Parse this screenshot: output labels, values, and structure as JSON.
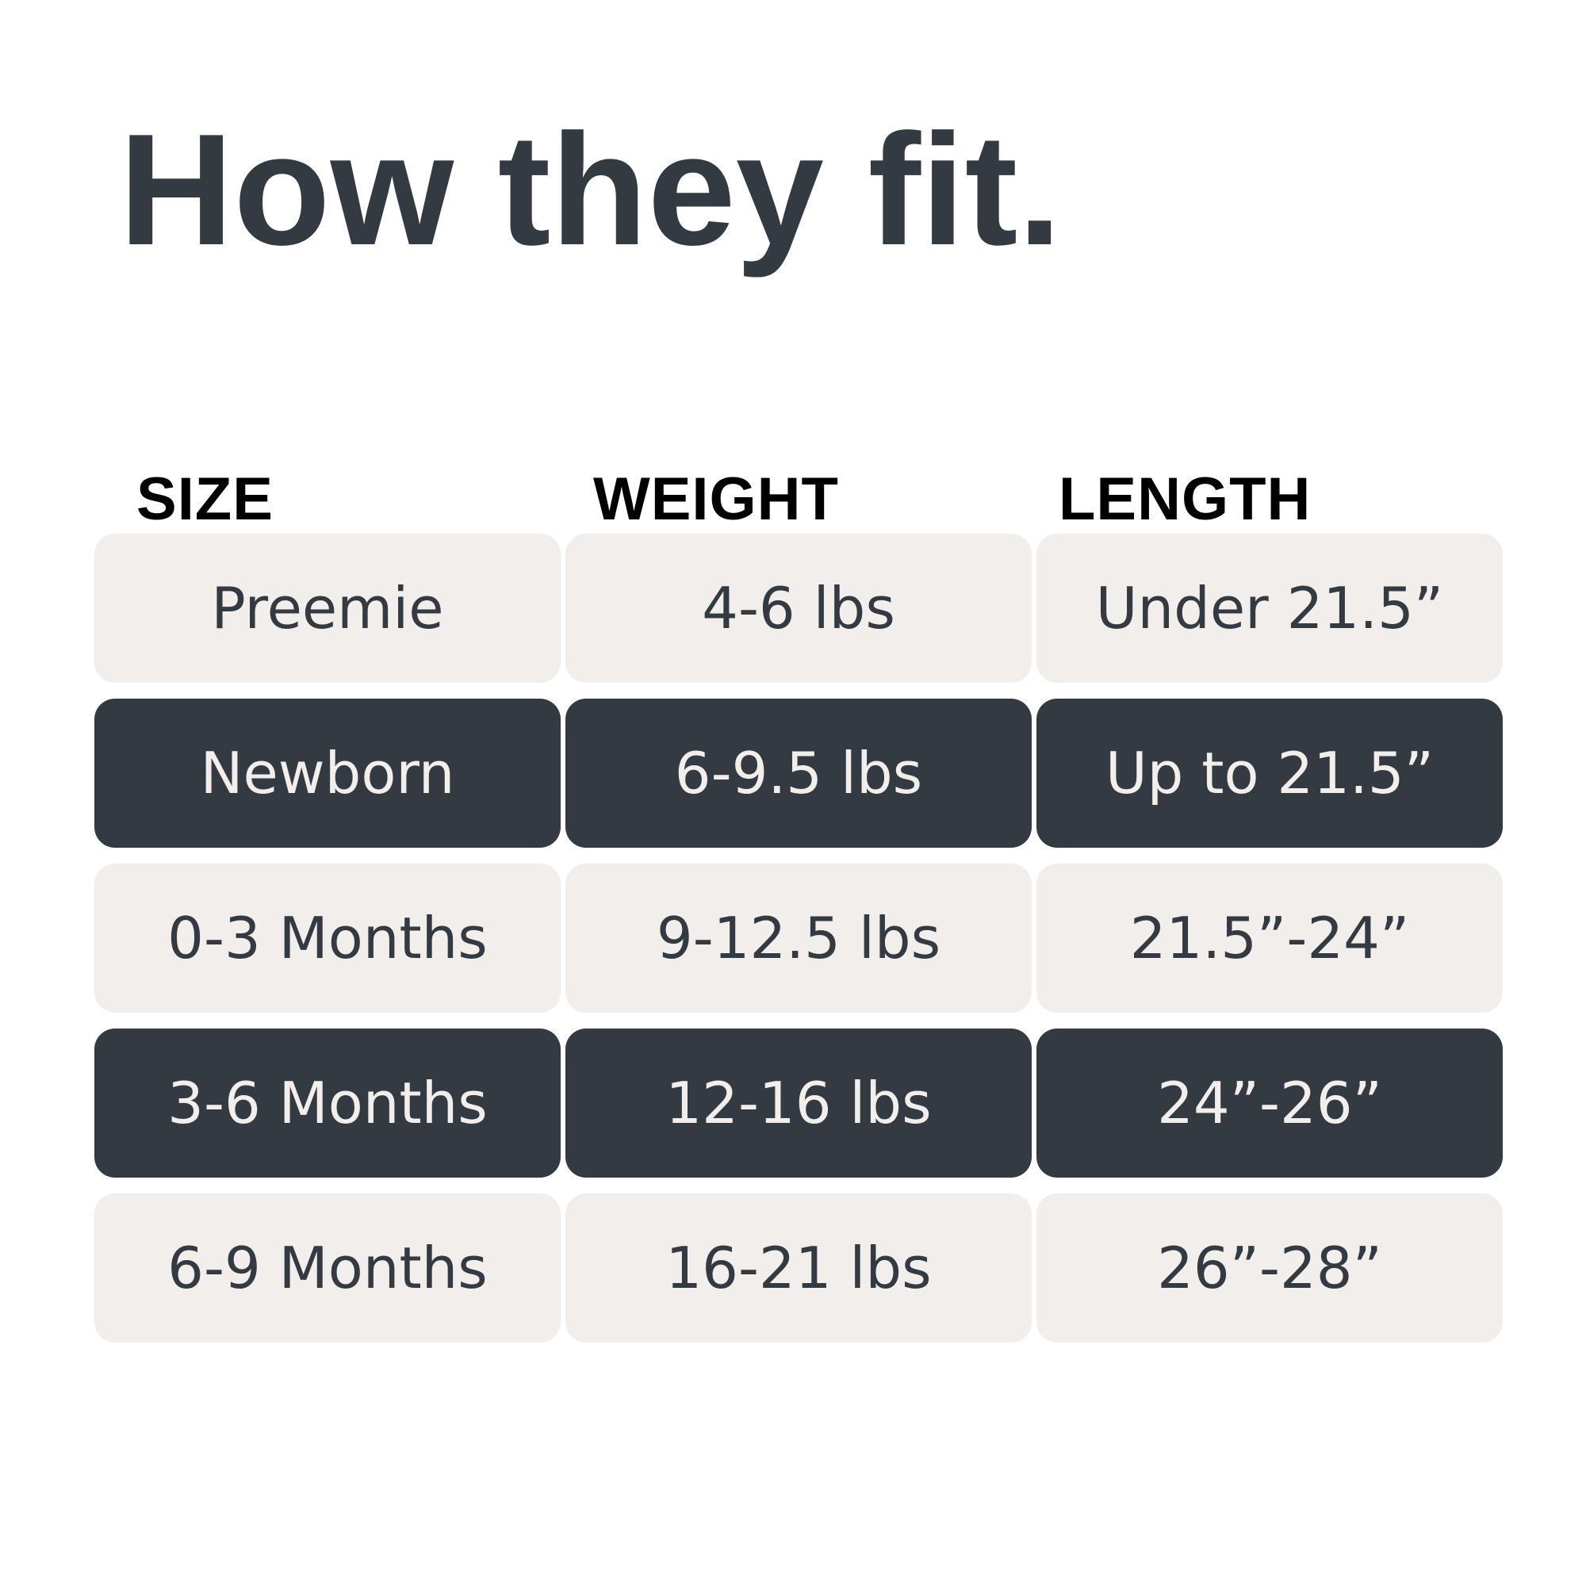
{
  "title": "How they fit.",
  "colors": {
    "dark": "#333a41",
    "light": "#f2eeeb",
    "header": "#000000"
  },
  "table": {
    "headers": [
      "SIZE",
      "WEIGHT",
      "LENGTH"
    ],
    "rows": [
      {
        "style": "light",
        "cells": [
          "Preemie",
          "4-6 lbs",
          "Under 21.5”"
        ]
      },
      {
        "style": "dark",
        "cells": [
          "Newborn",
          "6-9.5 lbs",
          "Up to 21.5”"
        ]
      },
      {
        "style": "light",
        "cells": [
          "0-3 Months",
          "9-12.5 lbs",
          "21.5”-24”"
        ]
      },
      {
        "style": "dark",
        "cells": [
          "3-6 Months",
          "12-16 lbs",
          "24”-26”"
        ]
      },
      {
        "style": "light",
        "cells": [
          "6-9 Months",
          "16-21 lbs",
          "26”-28”"
        ]
      }
    ]
  }
}
